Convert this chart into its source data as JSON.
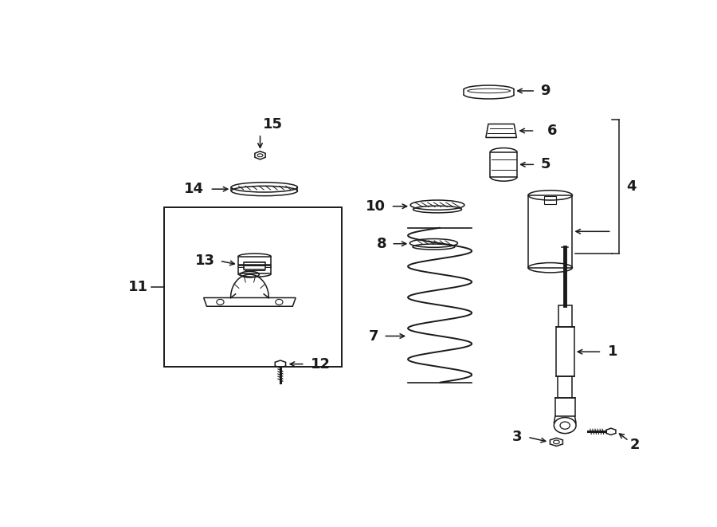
{
  "bg_color": "#ffffff",
  "line_color": "#1a1a1a",
  "figsize": [
    9.0,
    6.61
  ],
  "dpi": 100,
  "lw": 1.1
}
